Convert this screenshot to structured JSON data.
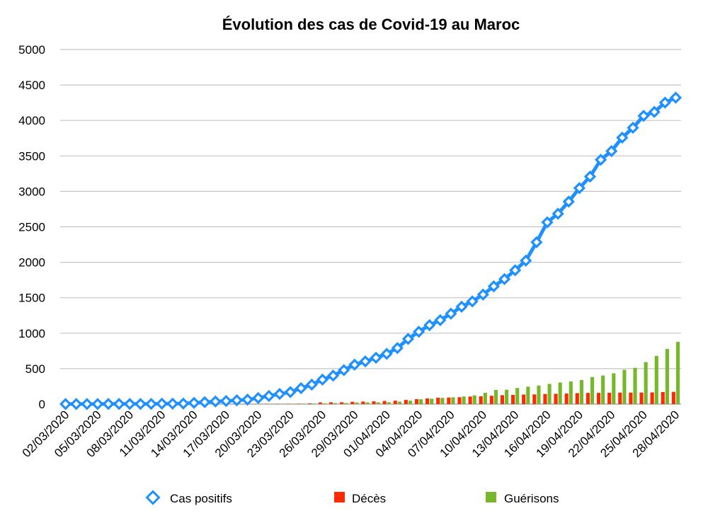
{
  "chart_data": {
    "type": "bar+line",
    "title": "Évolution des cas de Covid-19 au Maroc",
    "xlabel": "",
    "ylabel": "",
    "ylim": [
      0,
      5000
    ],
    "yticks": [
      0,
      500,
      1000,
      1500,
      2000,
      2500,
      3000,
      3500,
      4000,
      4500,
      5000
    ],
    "grid": true,
    "legend_position": "bottom",
    "x": [
      "02/03/2020",
      "03/03/2020",
      "04/03/2020",
      "05/03/2020",
      "06/03/2020",
      "07/03/2020",
      "08/03/2020",
      "09/03/2020",
      "10/03/2020",
      "11/03/2020",
      "12/03/2020",
      "13/03/2020",
      "14/03/2020",
      "15/03/2020",
      "16/03/2020",
      "17/03/2020",
      "18/03/2020",
      "19/03/2020",
      "20/03/2020",
      "21/03/2020",
      "22/03/2020",
      "23/03/2020",
      "24/03/2020",
      "25/03/2020",
      "26/03/2020",
      "27/03/2020",
      "28/03/2020",
      "29/03/2020",
      "30/03/2020",
      "31/03/2020",
      "01/04/2020",
      "02/04/2020",
      "03/04/2020",
      "04/04/2020",
      "05/04/2020",
      "06/04/2020",
      "07/04/2020",
      "08/04/2020",
      "09/04/2020",
      "10/04/2020",
      "11/04/2020",
      "12/04/2020",
      "13/04/2020",
      "14/04/2020",
      "15/04/2020",
      "16/04/2020",
      "17/04/2020",
      "18/04/2020",
      "19/04/2020",
      "20/04/2020",
      "21/04/2020",
      "22/04/2020",
      "23/04/2020",
      "24/04/2020",
      "25/04/2020",
      "26/04/2020",
      "27/04/2020",
      "28/04/2020"
    ],
    "x_tick_labels": [
      "02/03/2020",
      "05/03/2020",
      "08/03/2020",
      "11/03/2020",
      "14/03/2020",
      "17/03/2020",
      "20/03/2020",
      "23/03/2020",
      "26/03/2020",
      "29/03/2020",
      "01/04/2020",
      "04/04/2020",
      "07/04/2020",
      "10/04/2020",
      "13/04/2020",
      "16/04/2020",
      "19/04/2020",
      "22/04/2020",
      "25/04/2020",
      "28/04/2020"
    ],
    "x_tick_every": 3,
    "series": [
      {
        "name": "Cas positifs",
        "kind": "line",
        "color": "#1e90ff",
        "values": [
          1,
          1,
          1,
          1,
          2,
          2,
          2,
          2,
          3,
          6,
          6,
          8,
          18,
          28,
          37,
          44,
          54,
          63,
          86,
          115,
          143,
          170,
          225,
          275,
          345,
          402,
          479,
          556,
          602,
          654,
          708,
          791,
          919,
          1021,
          1113,
          1184,
          1275,
          1374,
          1448,
          1545,
          1661,
          1763,
          1888,
          2024,
          2283,
          2564,
          2685,
          2855,
          3046,
          3209,
          3446,
          3568,
          3758,
          3897,
          4065,
          4120,
          4252,
          4321
        ]
      },
      {
        "name": "Décès",
        "kind": "bar",
        "color": "#ff2a00",
        "values": [
          0,
          0,
          0,
          0,
          0,
          0,
          0,
          0,
          0,
          1,
          1,
          1,
          1,
          1,
          2,
          2,
          2,
          2,
          3,
          4,
          4,
          4,
          6,
          10,
          23,
          25,
          26,
          33,
          36,
          39,
          44,
          48,
          59,
          70,
          80,
          90,
          93,
          97,
          107,
          111,
          118,
          126,
          130,
          135,
          137,
          143,
          145,
          149,
          155,
          158,
          159,
          160,
          162,
          162,
          163,
          165,
          170,
          173
        ]
      },
      {
        "name": "Guérisons",
        "kind": "bar",
        "color": "#76b82a",
        "values": [
          0,
          0,
          0,
          0,
          0,
          0,
          0,
          0,
          0,
          0,
          0,
          0,
          1,
          1,
          1,
          1,
          1,
          2,
          3,
          3,
          3,
          5,
          7,
          8,
          11,
          14,
          15,
          23,
          25,
          25,
          26,
          34,
          48,
          68,
          76,
          88,
          96,
          108,
          123,
          160,
          200,
          203,
          227,
          246,
          262,
          285,
          304,
          319,
          340,
          382,
          403,
          435,
          485,
          512,
          593,
          680,
          778,
          877
        ]
      }
    ]
  }
}
